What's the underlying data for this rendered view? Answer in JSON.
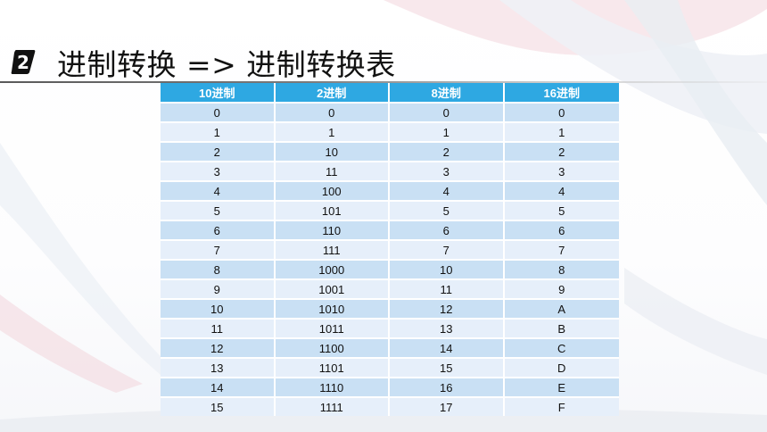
{
  "header": {
    "badge_number": "2",
    "title": "进制转换 => 进制转换表"
  },
  "table": {
    "columns": [
      "10进制",
      "2进制",
      "8进制",
      "16进制"
    ],
    "rows": [
      [
        "0",
        "0",
        "0",
        "0"
      ],
      [
        "1",
        "1",
        "1",
        "1"
      ],
      [
        "2",
        "10",
        "2",
        "2"
      ],
      [
        "3",
        "11",
        "3",
        "3"
      ],
      [
        "4",
        "100",
        "4",
        "4"
      ],
      [
        "5",
        "101",
        "5",
        "5"
      ],
      [
        "6",
        "110",
        "6",
        "6"
      ],
      [
        "7",
        "111",
        "7",
        "7"
      ],
      [
        "8",
        "1000",
        "10",
        "8"
      ],
      [
        "9",
        "1001",
        "11",
        "9"
      ],
      [
        "10",
        "1010",
        "12",
        "A"
      ],
      [
        "11",
        "1011",
        "13",
        "B"
      ],
      [
        "12",
        "1100",
        "14",
        "C"
      ],
      [
        "13",
        "1101",
        "15",
        "D"
      ],
      [
        "14",
        "1110",
        "16",
        "E"
      ],
      [
        "15",
        "1111",
        "17",
        "F"
      ]
    ]
  },
  "colors": {
    "header_bg": "#2ea8e2",
    "row_dark": "#c9e0f4",
    "row_light": "#e6effa",
    "badge": "#111111"
  }
}
